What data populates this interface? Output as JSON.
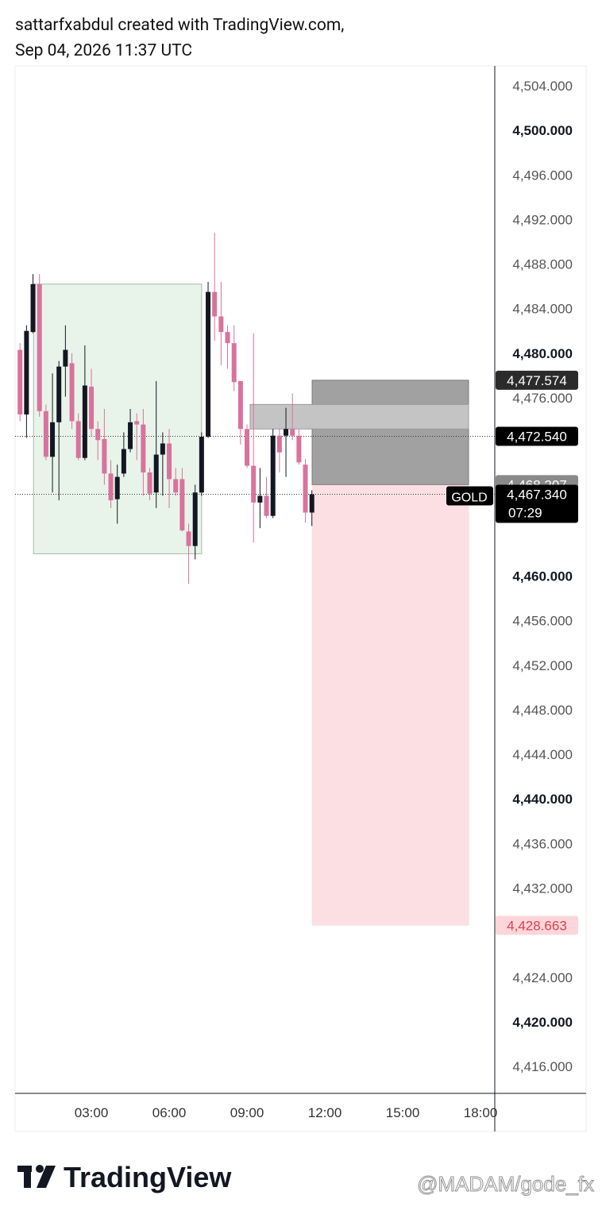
{
  "header": {
    "line1": "sattarfxabdul created with TradingView.com,",
    "line2": "Sep 04, 2026 11:37 UTC"
  },
  "footer": {
    "logo": "TradingView",
    "watermark": "@MADAM/gode_fx"
  },
  "chart_data": {
    "type": "candlestick",
    "xlim": [
      0.06,
      18.55
    ],
    "xticks": [
      {
        "value": 3,
        "label": "03:00"
      },
      {
        "value": 6,
        "label": "06:00"
      },
      {
        "value": 9,
        "label": "09:00"
      },
      {
        "value": 12,
        "label": "12:00"
      },
      {
        "value": 15,
        "label": "15:00"
      },
      {
        "value": 18,
        "label": "18:00"
      }
    ],
    "ylim": [
      4413.58,
      4505.78
    ],
    "yticks": [
      {
        "value": 4504,
        "label": "4,504.000"
      },
      {
        "value": 4500,
        "label": "4,500.000"
      },
      {
        "value": 4496,
        "label": "4,496.000"
      },
      {
        "value": 4492,
        "label": "4,492.000"
      },
      {
        "value": 4488,
        "label": "4,488.000"
      },
      {
        "value": 4484,
        "label": "4,484.000"
      },
      {
        "value": 4480,
        "label": "4,480.000"
      },
      {
        "value": 4476,
        "label": "4,476.000"
      },
      {
        "value": 4460,
        "label": "4,460.000"
      },
      {
        "value": 4456,
        "label": "4,456.000"
      },
      {
        "value": 4452,
        "label": "4,452.000"
      },
      {
        "value": 4448,
        "label": "4,448.000"
      },
      {
        "value": 4444,
        "label": "4,444.000"
      },
      {
        "value": 4440,
        "label": "4,440.000"
      },
      {
        "value": 4436,
        "label": "4,436.000"
      },
      {
        "value": 4432,
        "label": "4,432.000"
      },
      {
        "value": 4424,
        "label": "4,424.000"
      },
      {
        "value": 4420,
        "label": "4,420.000"
      },
      {
        "value": 4416,
        "label": "4,416.000"
      }
    ],
    "up_color": "#131722",
    "down_color": "#d9729c",
    "candles": [
      [
        0.25,
        4480.3,
        4480.9,
        4473.9,
        4474.5
      ],
      [
        0.5,
        4474.5,
        4482.5,
        4472.4,
        4482.0
      ],
      [
        0.75,
        4481.9,
        4487.1,
        4481.8,
        4486.2
      ],
      [
        1.0,
        4486.2,
        4487.1,
        4474.3,
        4474.8
      ],
      [
        1.25,
        4474.8,
        4475.4,
        4470.4,
        4470.7
      ],
      [
        1.5,
        4470.7,
        4478.2,
        4467.5,
        4473.8
      ],
      [
        1.75,
        4473.8,
        4479.3,
        4466.8,
        4478.8
      ],
      [
        2.0,
        4478.8,
        4482.5,
        4476.1,
        4480.3
      ],
      [
        2.25,
        4479.1,
        4480.0,
        4473.2,
        4473.9
      ],
      [
        2.5,
        4473.9,
        4474.6,
        4470.4,
        4470.6
      ],
      [
        2.75,
        4470.6,
        4480.7,
        4470.4,
        4477.1
      ],
      [
        3.0,
        4477.0,
        4478.6,
        4472.5,
        4473.2
      ],
      [
        3.25,
        4473.2,
        4473.9,
        4470.4,
        4472.2
      ],
      [
        3.5,
        4472.3,
        4475.0,
        4468.2,
        4469.2
      ],
      [
        3.75,
        4469.2,
        4470.4,
        4466.1,
        4466.8
      ],
      [
        4.0,
        4466.9,
        4470.0,
        4464.7,
        4468.9
      ],
      [
        4.25,
        4469.2,
        4472.9,
        4468.9,
        4471.4
      ],
      [
        4.5,
        4471.4,
        4475.0,
        4471.1,
        4473.8
      ],
      [
        4.75,
        4473.9,
        4474.6,
        4470.4,
        4473.6
      ],
      [
        5.0,
        4473.6,
        4475.0,
        4467.2,
        4469.3
      ],
      [
        5.25,
        4469.3,
        4469.7,
        4466.8,
        4467.4
      ],
      [
        5.5,
        4467.5,
        4477.5,
        4466.1,
        4470.9
      ],
      [
        5.75,
        4470.9,
        4472.9,
        4467.2,
        4471.9
      ],
      [
        6.0,
        4471.9,
        4473.2,
        4466.1,
        4468.7
      ],
      [
        6.25,
        4468.7,
        4469.7,
        4467.2,
        4467.5
      ],
      [
        6.5,
        4468.7,
        4469.7,
        4464.0,
        4464.1
      ],
      [
        6.75,
        4464.0,
        4464.7,
        4459.3,
        4462.7
      ],
      [
        7.0,
        4462.7,
        4468.2,
        4461.5,
        4467.5
      ],
      [
        7.25,
        4467.5,
        4472.9,
        4467.2,
        4472.5
      ],
      [
        7.5,
        4472.5,
        4486.4,
        4472.4,
        4485.5
      ],
      [
        7.75,
        4485.5,
        4490.8,
        4481.1,
        4483.3
      ],
      [
        8.0,
        4483.3,
        4486.4,
        4478.9,
        4481.9
      ],
      [
        8.25,
        4481.9,
        4482.5,
        4478.6,
        4480.9
      ],
      [
        8.5,
        4480.9,
        4482.5,
        4476.6,
        4477.4
      ],
      [
        8.75,
        4477.5,
        4477.5,
        4471.8,
        4473.2
      ],
      [
        9.0,
        4473.2,
        4473.6,
        4469.7,
        4469.9
      ],
      [
        9.25,
        4469.9,
        4481.8,
        4463.0,
        4466.6
      ],
      [
        9.5,
        4466.6,
        4469.7,
        4464.3,
        4467.2
      ],
      [
        9.75,
        4467.2,
        4468.9,
        4465.2,
        4465.4
      ],
      [
        10.0,
        4465.4,
        4473.2,
        4465.2,
        4472.6
      ],
      [
        10.25,
        4472.6,
        4473.2,
        4469.3,
        4471.1
      ],
      [
        10.5,
        4472.6,
        4475.1,
        4468.9,
        4473.2
      ],
      [
        10.75,
        4473.2,
        4476.4,
        4472.2,
        4472.6
      ],
      [
        11.0,
        4472.6,
        4473.2,
        4470.0,
        4470.2
      ],
      [
        11.25,
        4470.0,
        4470.5,
        4464.8,
        4465.7
      ],
      [
        11.5,
        4465.7,
        4467.7,
        4464.5,
        4467.34
      ]
    ],
    "boxes": [
      {
        "x": [
          0.77,
          7.25
        ],
        "y": [
          4462.0,
          4486.2
        ],
        "color": "#e8f4ea",
        "border": "#a9b9ad"
      },
      {
        "x": [
          11.51,
          17.54
        ],
        "y": [
          4428.663,
          4468.207
        ],
        "color": "#fcdfe2",
        "border": "#fcdfe2"
      },
      {
        "x": [
          11.51,
          17.54
        ],
        "y": [
          4468.207,
          4477.574
        ],
        "color": "#9c9c9c",
        "border": "#7a7a7a"
      },
      {
        "x": [
          9.12,
          17.54
        ],
        "y": [
          4473.2,
          4475.4
        ],
        "color": "#c4c4c4",
        "border": "#9a9a9a"
      }
    ],
    "hlines": [
      4472.54,
      4467.34
    ],
    "price_labels": [
      {
        "value": 4477.574,
        "label": "4,477.574",
        "color": "#2b2b2b",
        "text_color": "#ffffff"
      },
      {
        "value": 4472.54,
        "label": "4,472.540",
        "color": "#000000",
        "text_color": "#ffffff"
      },
      {
        "value": 4468.207,
        "label": "4,468.207",
        "color": "#8a8a8a",
        "text_color": "#ffffff"
      },
      {
        "value": 4467.34,
        "label": "4,467.340",
        "sub": "07:29",
        "tag": "GOLD",
        "color": "#000000",
        "text_color": "#ffffff"
      },
      {
        "value": 4428.663,
        "label": "4,428.663",
        "color": "#fcd6da",
        "text_color": "#d8434f"
      }
    ]
  }
}
